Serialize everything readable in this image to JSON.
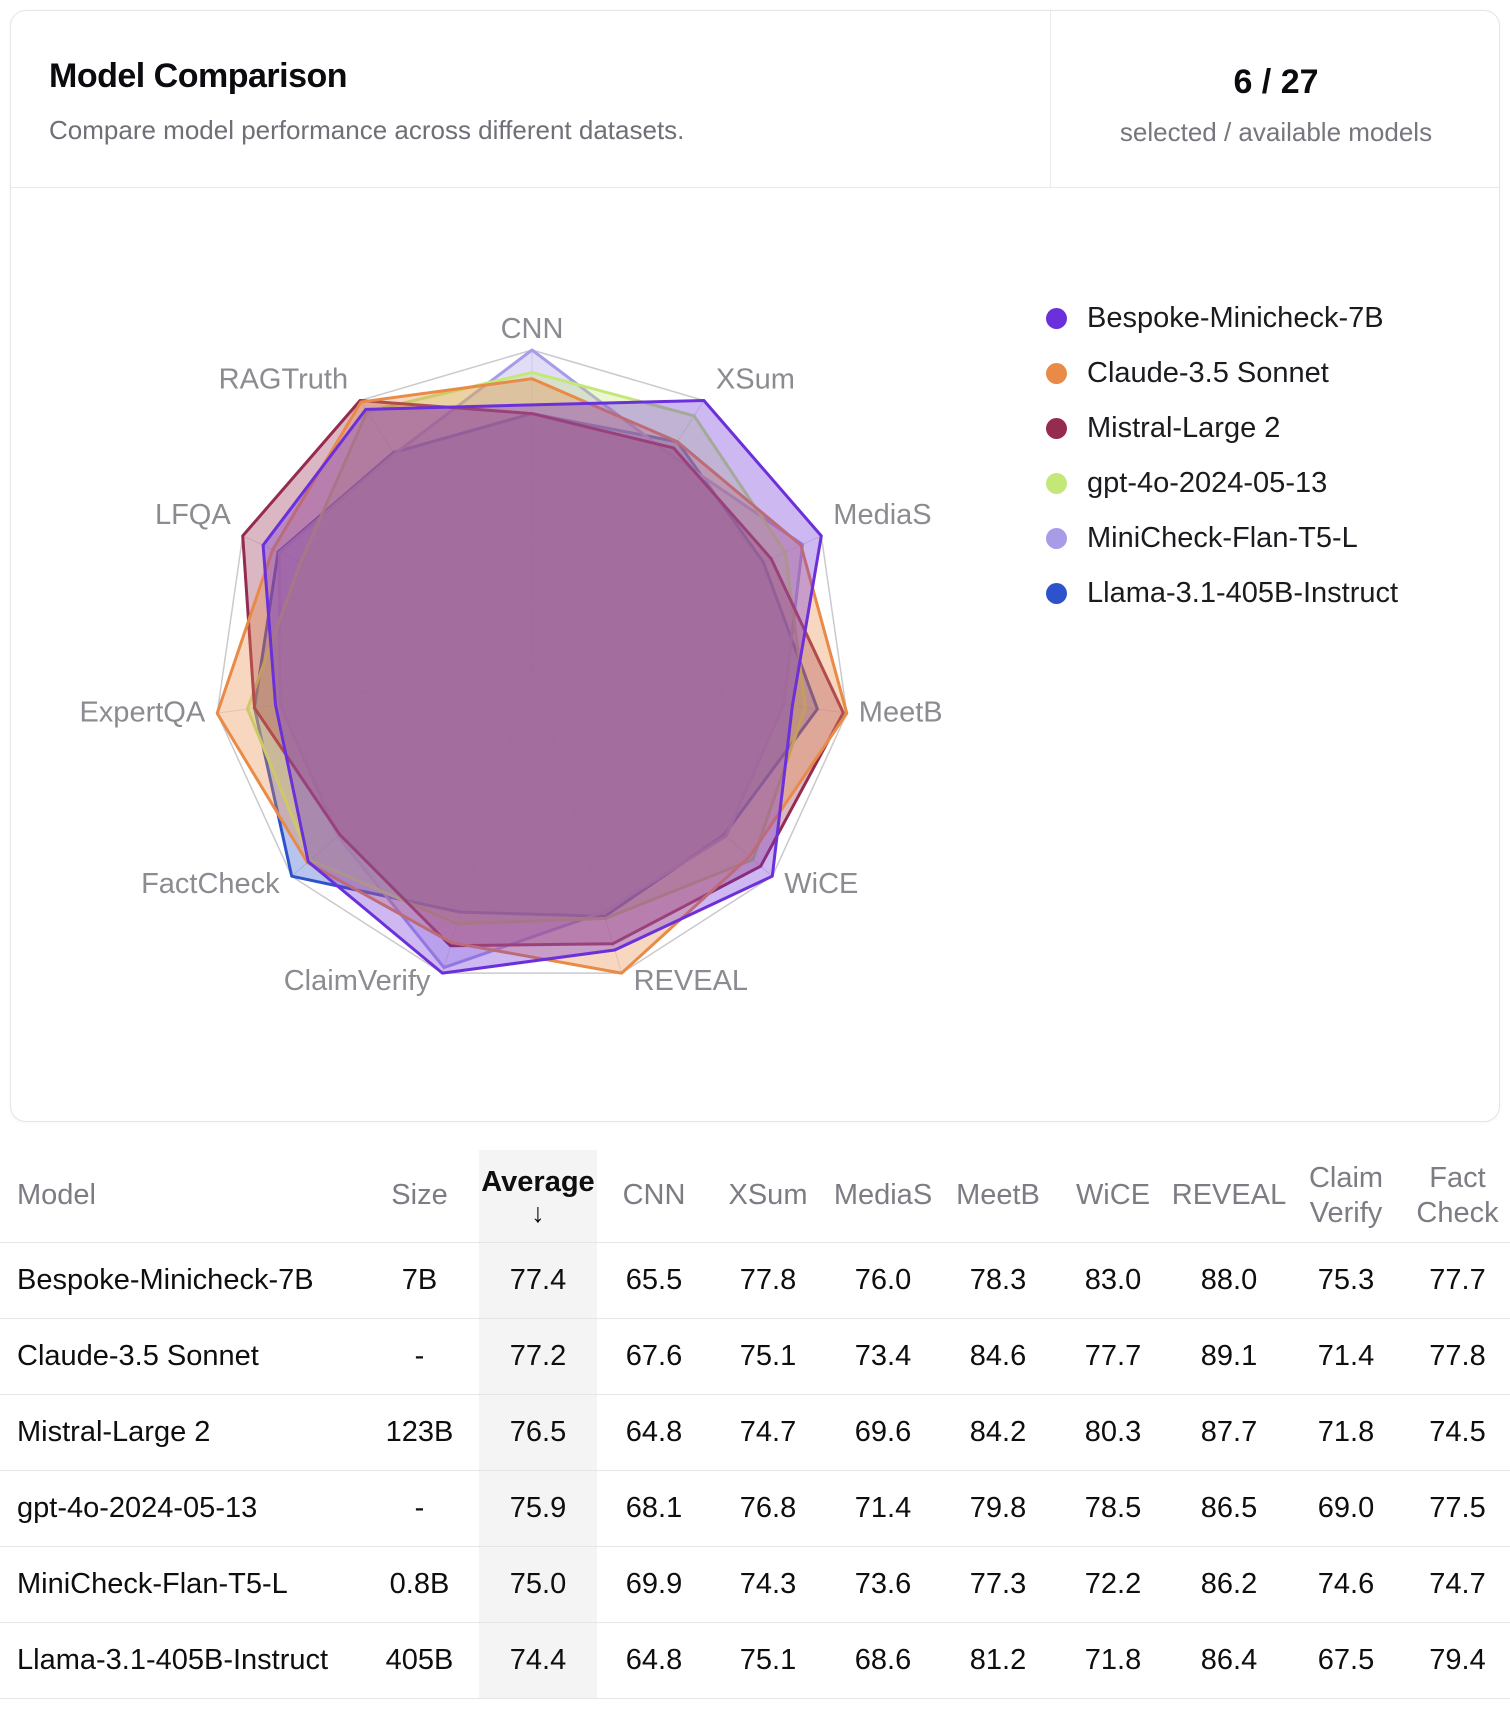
{
  "card": {
    "title": "Model Comparison",
    "subtitle": "Compare model performance across different datasets.",
    "counter": {
      "value": "6 / 27",
      "caption": "selected / available models"
    }
  },
  "chart_data": {
    "type": "radar",
    "axes": [
      "CNN",
      "XSum",
      "MediaS",
      "MeetB",
      "WiCE",
      "REVEAL",
      "ClaimVerify",
      "FactCheck",
      "ExpertQA",
      "LFQA",
      "RAGTruth"
    ],
    "series": [
      {
        "name": "Bespoke-Minicheck-7B",
        "color": "#6B30D9",
        "values": [
          65.5,
          77.8,
          76.0,
          78.3,
          83.0,
          88.0,
          75.3,
          77.7,
          59.2,
          86.7,
          84.0
        ]
      },
      {
        "name": "Claude-3.5 Sonnet",
        "color": "#E98A47",
        "values": [
          67.6,
          75.1,
          73.4,
          84.6,
          77.7,
          89.1,
          71.4,
          77.8,
          61.7,
          85.8,
          85.0
        ]
      },
      {
        "name": "Mistral-Large 2",
        "color": "#962B50",
        "values": [
          64.8,
          74.7,
          69.6,
          84.2,
          80.3,
          87.7,
          71.8,
          74.5,
          60.1,
          88.6,
          85.2
        ]
      },
      {
        "name": "gpt-4o-2024-05-13",
        "color": "#C3E878",
        "values": [
          68.1,
          76.8,
          71.4,
          79.8,
          78.5,
          86.5,
          69.0,
          77.5,
          60.4,
          83.2,
          83.7
        ]
      },
      {
        "name": "MiniCheck-Flan-T5-L",
        "color": "#A89BE8",
        "values": [
          69.9,
          74.3,
          73.6,
          77.3,
          72.2,
          86.2,
          74.6,
          74.7,
          59.0,
          85.2,
          78.0
        ]
      },
      {
        "name": "Llama-3.1-405B-Instruct",
        "color": "#2D53CC",
        "values": [
          64.8,
          75.1,
          68.6,
          81.2,
          71.8,
          86.4,
          67.5,
          79.4,
          60.1,
          85.3,
          78.2
        ]
      }
    ],
    "legend_position": "right",
    "grid": true,
    "radial_axis": "per-axis min to max mapped to 80% - 100% of radius",
    "fill_opacity": 0.34
  },
  "table": {
    "columns": [
      {
        "key": "model",
        "label": "Model"
      },
      {
        "key": "size",
        "label": "Size"
      },
      {
        "key": "average",
        "label": "Average",
        "sorted": true,
        "sort_icon": "↓"
      },
      {
        "key": "cnn",
        "label": "CNN"
      },
      {
        "key": "xsum",
        "label": "XSum"
      },
      {
        "key": "medias",
        "label": "MediaS"
      },
      {
        "key": "meetb",
        "label": "MeetB"
      },
      {
        "key": "wice",
        "label": "WiCE"
      },
      {
        "key": "reveal",
        "label": "REVEAL"
      },
      {
        "key": "claim_verify",
        "label": "Claim\nVerify"
      },
      {
        "key": "fact_check",
        "label": "Fact\nCheck"
      }
    ],
    "rows": [
      {
        "model": "Bespoke-Minicheck-7B",
        "size": "7B",
        "average": "77.4",
        "cnn": "65.5",
        "xsum": "77.8",
        "medias": "76.0",
        "meetb": "78.3",
        "wice": "83.0",
        "reveal": "88.0",
        "claim_verify": "75.3",
        "fact_check": "77.7"
      },
      {
        "model": "Claude-3.5 Sonnet",
        "size": "-",
        "average": "77.2",
        "cnn": "67.6",
        "xsum": "75.1",
        "medias": "73.4",
        "meetb": "84.6",
        "wice": "77.7",
        "reveal": "89.1",
        "claim_verify": "71.4",
        "fact_check": "77.8"
      },
      {
        "model": "Mistral-Large 2",
        "size": "123B",
        "average": "76.5",
        "cnn": "64.8",
        "xsum": "74.7",
        "medias": "69.6",
        "meetb": "84.2",
        "wice": "80.3",
        "reveal": "87.7",
        "claim_verify": "71.8",
        "fact_check": "74.5"
      },
      {
        "model": "gpt-4o-2024-05-13",
        "size": "-",
        "average": "75.9",
        "cnn": "68.1",
        "xsum": "76.8",
        "medias": "71.4",
        "meetb": "79.8",
        "wice": "78.5",
        "reveal": "86.5",
        "claim_verify": "69.0",
        "fact_check": "77.5"
      },
      {
        "model": "MiniCheck-Flan-T5-L",
        "size": "0.8B",
        "average": "75.0",
        "cnn": "69.9",
        "xsum": "74.3",
        "medias": "73.6",
        "meetb": "77.3",
        "wice": "72.2",
        "reveal": "86.2",
        "claim_verify": "74.6",
        "fact_check": "74.7"
      },
      {
        "model": "Llama-3.1-405B-Instruct",
        "size": "405B",
        "average": "74.4",
        "cnn": "64.8",
        "xsum": "75.1",
        "medias": "68.6",
        "meetb": "81.2",
        "wice": "71.8",
        "reveal": "86.4",
        "claim_verify": "67.5",
        "fact_check": "79.4"
      }
    ]
  }
}
